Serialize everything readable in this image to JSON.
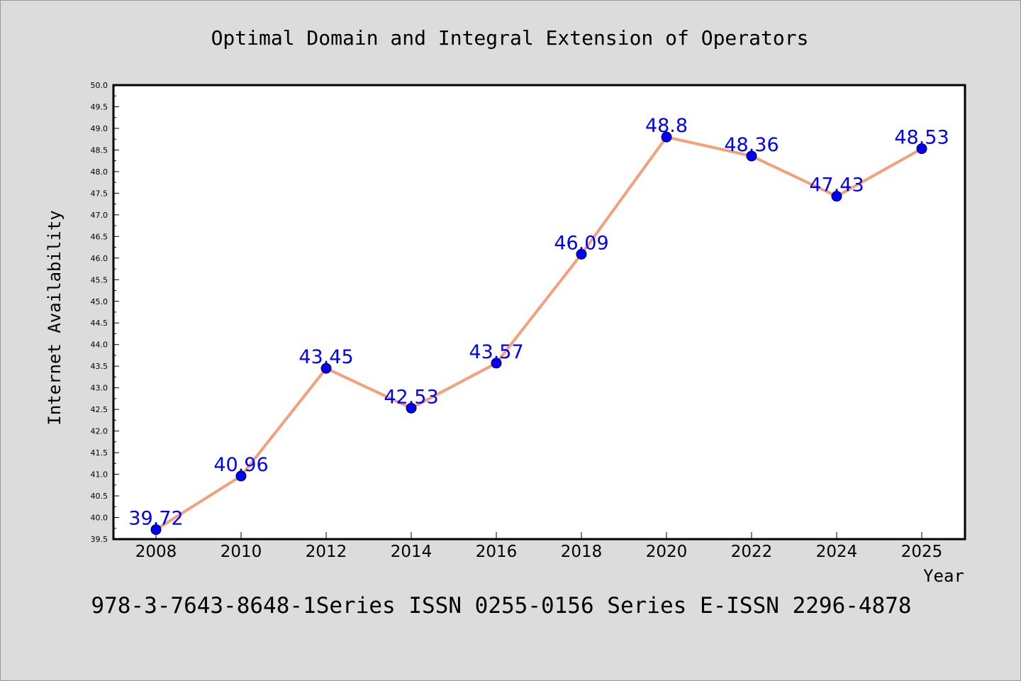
{
  "chart_data": {
    "type": "line",
    "title": "Optimal Domain and Integral Extension of Operators",
    "xlabel": "Year",
    "ylabel": "Internet Availability",
    "x": [
      "2008",
      "2010",
      "2012",
      "2014",
      "2016",
      "2018",
      "2020",
      "2022",
      "2024",
      "2025"
    ],
    "values": [
      39.72,
      40.96,
      43.45,
      42.53,
      43.57,
      46.09,
      48.8,
      48.36,
      47.43,
      48.53
    ],
    "data_labels": [
      "39.72",
      "40.96",
      "43.45",
      "42.53",
      "43.57",
      "46.09",
      "48.8",
      "48.36",
      "47.43",
      "48.53"
    ],
    "ylim": [
      39.5,
      50.0
    ],
    "ytick_labels": [
      "39.5",
      "40.0",
      "40.5",
      "41.0",
      "41.5",
      "42.0",
      "42.5",
      "43.0",
      "43.5",
      "44.0",
      "44.5",
      "45.0",
      "45.5",
      "46.0",
      "46.5",
      "47.0",
      "47.5",
      "48.0",
      "48.5",
      "49.0",
      "49.5",
      "50.0"
    ],
    "grid": false,
    "colors": {
      "line": "#f4a07a",
      "marker": "#0000ff",
      "data_label": "#0000ff",
      "background": "#dcdcdc",
      "plot_area": "#ffffff"
    }
  },
  "footer": "978-3-7643-8648-1Series ISSN 0255-0156 Series E-ISSN 2296-4878"
}
